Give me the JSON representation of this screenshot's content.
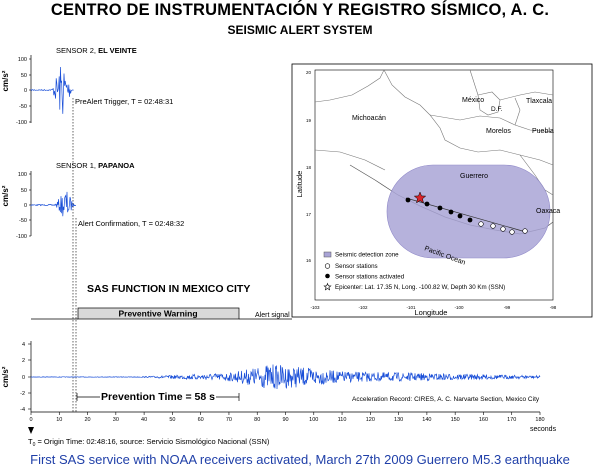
{
  "header": {
    "title": "CENTRO DE INSTRUMENTACIÓN Y REGISTRO SÍSMICO, A. C.",
    "subtitle": "SEISMIC ALERT SYSTEM"
  },
  "sensor2": {
    "label_prefix": "SENSOR 2, ",
    "label_name": "EL VEINTE",
    "event": "PreAlert Trigger, T = 02:48:31",
    "unit": "cm/s²",
    "ticks": [
      "100",
      "50",
      "0",
      "-50",
      "-100"
    ]
  },
  "sensor1": {
    "label_prefix": "SENSOR 1, ",
    "label_name": "PAPANOA",
    "event": "Alert Confirmation, T = 02:48:32",
    "unit": "cm/s²",
    "ticks": [
      "100",
      "50",
      "0",
      "-50",
      "-100"
    ]
  },
  "sas": {
    "heading": "SAS FUNCTION IN MEXICO CITY",
    "warning": "Preventive Warning",
    "alert_signal": "Alert signal"
  },
  "record": {
    "unit": "cm/s²",
    "y_ticks": [
      "4",
      "2",
      "0",
      "-2",
      "-4"
    ],
    "x_ticks": [
      "0",
      "10",
      "20",
      "30",
      "40",
      "50",
      "60",
      "70",
      "80",
      "90",
      "100",
      "110",
      "120",
      "130",
      "140",
      "150",
      "160",
      "170",
      "180"
    ],
    "x_unit": "seconds",
    "prevention": "Prevention Time = 58 s",
    "source": "Acceleration Record: CIRES, A. C. Narvarte Section, Mexico City",
    "origin_prefix": "T",
    "origin_sub": "0",
    "origin_text": " = Origin Time: 02:48:16, source: Servicio Sismológico Nacional (SSN)"
  },
  "map": {
    "regions": [
      "Michoacán",
      "México",
      "D.F.",
      "Tlaxcala",
      "Morelos",
      "Puebla",
      "Guerrero",
      "Oaxaca",
      "Pacific Ocean"
    ],
    "x_label": "Longitude",
    "y_label": "Latitude",
    "x_ticks": [
      "-103",
      "-102",
      "-101",
      "-100",
      "-99",
      "-98"
    ],
    "y_ticks": [
      "20",
      "19",
      "18",
      "17",
      "16"
    ],
    "legend": [
      "Seismic detection zone",
      "Sensor stations",
      "Sensor stations activated",
      "Epicenter: Lat. 17.35 N, Long. -100.82 W, Depth 30 Km (SSN)"
    ],
    "colors": {
      "zone": "#a9a4d6",
      "epicenter": "#d8232a"
    }
  },
  "footer": "First SAS service with NOAA receivers activated, March 27th 2009 Guerrero M5.3 earthquake",
  "colors": {
    "waveform": "#1a4fd8",
    "footer": "#1f3fa8"
  }
}
